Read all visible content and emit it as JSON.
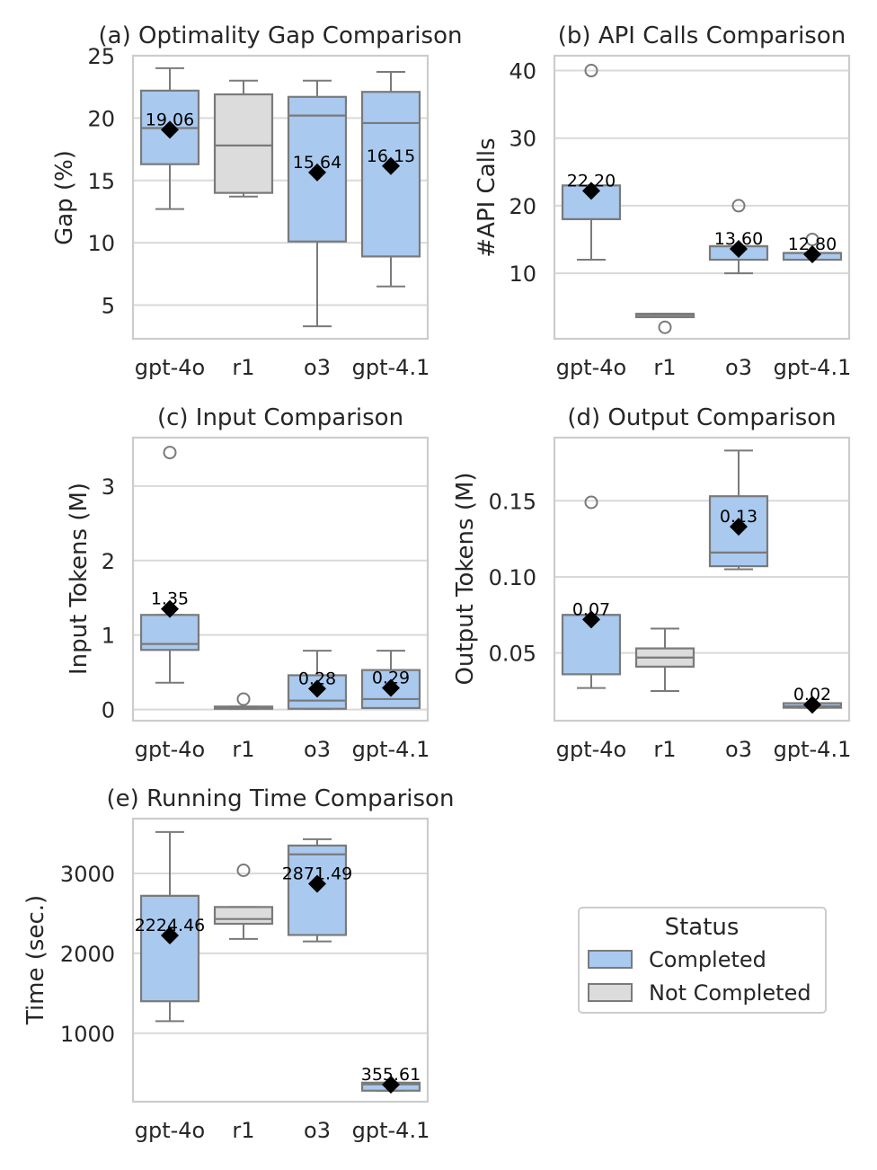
{
  "colors": {
    "completed": "#a9c9ef",
    "not_completed": "#dcdcdc",
    "line": "#7a7a7a",
    "mean": "#000000"
  },
  "legend": {
    "title": "Status",
    "entries": [
      {
        "label": "Completed",
        "status": "completed"
      },
      {
        "label": "Not Completed",
        "status": "not_completed"
      }
    ]
  },
  "chart_data": [
    {
      "id": "a",
      "type": "box",
      "title": "(a) Optimality Gap Comparison",
      "ylabel": "Gap (%)",
      "ylim": [
        2.3,
        25
      ],
      "yticks": [
        5,
        10,
        15,
        20,
        25
      ],
      "categories": [
        "gpt-4o",
        "r1",
        "o3",
        "gpt-4.1"
      ],
      "boxes": [
        {
          "cat": "gpt-4o",
          "status": "completed",
          "whislo": 12.7,
          "q1": 16.3,
          "med": 19.2,
          "q3": 22.2,
          "whishi": 24.0,
          "mean": 19.06,
          "mean_label": "19.06",
          "fliers": []
        },
        {
          "cat": "r1",
          "status": "not_completed",
          "whislo": 13.7,
          "q1": 14.0,
          "med": 17.8,
          "q3": 21.9,
          "whishi": 23.0,
          "mean": null,
          "mean_label": null,
          "fliers": []
        },
        {
          "cat": "o3",
          "status": "completed",
          "whislo": 3.3,
          "q1": 10.1,
          "med": 20.2,
          "q3": 21.7,
          "whishi": 23.0,
          "mean": 15.64,
          "mean_label": "15.64",
          "fliers": []
        },
        {
          "cat": "gpt-4.1",
          "status": "completed",
          "whislo": 6.5,
          "q1": 8.9,
          "med": 19.6,
          "q3": 22.1,
          "whishi": 23.7,
          "mean": 16.15,
          "mean_label": "16.15",
          "fliers": []
        }
      ]
    },
    {
      "id": "b",
      "type": "box",
      "title": "(b) API Calls Comparison",
      "ylabel": "#API Calls",
      "ylim": [
        0.3,
        42.2
      ],
      "yticks": [
        10,
        20,
        30,
        40
      ],
      "categories": [
        "gpt-4o",
        "r1",
        "o3",
        "gpt-4.1"
      ],
      "boxes": [
        {
          "cat": "gpt-4o",
          "status": "completed",
          "whislo": 12,
          "q1": 18,
          "med": 18,
          "q3": 23,
          "whishi": 23,
          "mean": 22.2,
          "mean_label": "22.20",
          "fliers": [
            40
          ]
        },
        {
          "cat": "r1",
          "status": "not_completed",
          "whislo": 3.5,
          "q1": 3.5,
          "med": 3.8,
          "q3": 4,
          "whishi": 4,
          "mean": null,
          "mean_label": null,
          "fliers": [
            2
          ]
        },
        {
          "cat": "o3",
          "status": "completed",
          "whislo": 10,
          "q1": 12,
          "med": 14,
          "q3": 14,
          "whishi": 14,
          "mean": 13.6,
          "mean_label": "13.60",
          "fliers": [
            20
          ]
        },
        {
          "cat": "gpt-4.1",
          "status": "completed",
          "whislo": 12,
          "q1": 12,
          "med": 13,
          "q3": 13,
          "whishi": 13,
          "mean": 12.8,
          "mean_label": "12.80",
          "fliers": [
            15
          ]
        }
      ]
    },
    {
      "id": "c",
      "type": "box",
      "title": "(c) Input Comparison",
      "ylabel": "Input Tokens (M)",
      "ylim": [
        -0.15,
        3.65
      ],
      "yticks": [
        0,
        1,
        2,
        3
      ],
      "categories": [
        "gpt-4o",
        "r1",
        "o3",
        "gpt-4.1"
      ],
      "boxes": [
        {
          "cat": "gpt-4o",
          "status": "completed",
          "whislo": 0.36,
          "q1": 0.8,
          "med": 0.88,
          "q3": 1.27,
          "whishi": 1.27,
          "mean": 1.35,
          "mean_label": "1.35",
          "fliers": [
            3.45
          ]
        },
        {
          "cat": "r1",
          "status": "not_completed",
          "whislo": 0.01,
          "q1": 0.01,
          "med": 0.02,
          "q3": 0.04,
          "whishi": 0.04,
          "mean": null,
          "mean_label": null,
          "fliers": [
            0.14
          ]
        },
        {
          "cat": "o3",
          "status": "completed",
          "whislo": 0.01,
          "q1": 0.01,
          "med": 0.12,
          "q3": 0.46,
          "whishi": 0.79,
          "mean": 0.28,
          "mean_label": "0.28",
          "fliers": []
        },
        {
          "cat": "gpt-4.1",
          "status": "completed",
          "whislo": 0.02,
          "q1": 0.02,
          "med": 0.14,
          "q3": 0.53,
          "whishi": 0.79,
          "mean": 0.29,
          "mean_label": "0.29",
          "fliers": []
        }
      ]
    },
    {
      "id": "d",
      "type": "box",
      "title": "(d) Output Comparison",
      "ylabel": "Output Tokens (M)",
      "ylim": [
        0.0055,
        0.1915
      ],
      "yticks": [
        0.05,
        0.1,
        0.15
      ],
      "ytick_labels": [
        "0.05",
        "0.10",
        "0.15"
      ],
      "categories": [
        "gpt-4o",
        "r1",
        "o3",
        "gpt-4.1"
      ],
      "boxes": [
        {
          "cat": "gpt-4o",
          "status": "completed",
          "whislo": 0.027,
          "q1": 0.036,
          "med": 0.075,
          "q3": 0.075,
          "whishi": 0.075,
          "mean": 0.072,
          "mean_label": "0.07",
          "fliers": [
            0.149
          ]
        },
        {
          "cat": "r1",
          "status": "not_completed",
          "whislo": 0.025,
          "q1": 0.041,
          "med": 0.047,
          "q3": 0.053,
          "whishi": 0.066,
          "mean": null,
          "mean_label": null,
          "fliers": []
        },
        {
          "cat": "o3",
          "status": "completed",
          "whislo": 0.105,
          "q1": 0.107,
          "med": 0.116,
          "q3": 0.153,
          "whishi": 0.183,
          "mean": 0.133,
          "mean_label": "0.13",
          "fliers": []
        },
        {
          "cat": "gpt-4.1",
          "status": "completed",
          "whislo": 0.014,
          "q1": 0.014,
          "med": 0.015,
          "q3": 0.017,
          "whishi": 0.017,
          "mean": 0.016,
          "mean_label": "0.02",
          "fliers": []
        }
      ]
    },
    {
      "id": "e",
      "type": "box",
      "title": "(e) Running Time Comparison",
      "ylabel": "Time (sec.)",
      "ylim": [
        142,
        3687
      ],
      "yticks": [
        1000,
        2000,
        3000
      ],
      "categories": [
        "gpt-4o",
        "r1",
        "o3",
        "gpt-4.1"
      ],
      "boxes": [
        {
          "cat": "gpt-4o",
          "status": "completed",
          "whislo": 1150,
          "q1": 1400,
          "med": 2720,
          "q3": 2720,
          "whishi": 3520,
          "mean": 2224.46,
          "mean_label": "2224.46",
          "fliers": []
        },
        {
          "cat": "r1",
          "status": "not_completed",
          "whislo": 2180,
          "q1": 2370,
          "med": 2430,
          "q3": 2580,
          "whishi": 2580,
          "mean": null,
          "mean_label": null,
          "fliers": [
            3040
          ]
        },
        {
          "cat": "o3",
          "status": "completed",
          "whislo": 2150,
          "q1": 2230,
          "med": 3240,
          "q3": 3350,
          "whishi": 3430,
          "mean": 2871.49,
          "mean_label": "2871.49",
          "fliers": []
        },
        {
          "cat": "gpt-4.1",
          "status": "completed",
          "whislo": 280,
          "q1": 280,
          "med": 360,
          "q3": 380,
          "whishi": 380,
          "mean": 355.61,
          "mean_label": "355.61",
          "fliers": []
        }
      ]
    }
  ]
}
